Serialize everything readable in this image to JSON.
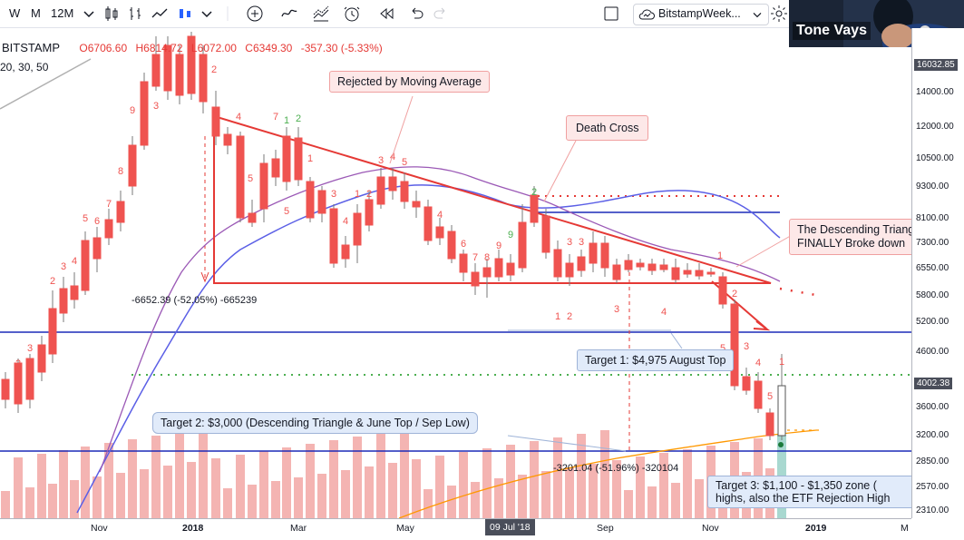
{
  "toolbar": {
    "intervals": [
      "W",
      "M",
      "12M"
    ],
    "symbol_name": "BitstampWeek..."
  },
  "webcam": {
    "name": "Tone Vays"
  },
  "legend": {
    "exchange": "BITSTAMP",
    "open_label": "O",
    "open": "6706.60",
    "high_label": "H",
    "high": "6814.72",
    "low_label": "L",
    "low": "6072.00",
    "close_label": "C",
    "close": "6349.30",
    "change": "-357.30 (-5.33%)",
    "ma_params": "20, 30, 50"
  },
  "annotations": {
    "rejected_ma": "Rejected by Moving Average",
    "death_cross": "Death Cross",
    "descending_triangle": "The Descending Triangle\nFINALLY Broke down",
    "target1": "Target 1: $4,975 August Top",
    "target2": "Target 2: $3,000 (Descending Triangle & June Top / Sep Low)",
    "target3": "Target 3: $1,100 - $1,350 zone (\nhighs, also the ETF Rejection High"
  },
  "measurements": {
    "m1": "-6652.39 (-52.05%) -665239",
    "m2": "-3201.04 (-51.96%) -320104"
  },
  "price_axis": {
    "labels": [
      "16032.85",
      "14000.00",
      "12000.00",
      "10500.00",
      "9300.00",
      "8100.00",
      "7300.00",
      "6550.00",
      "5800.00",
      "5200.00",
      "4600.00",
      "4002.38",
      "3600.00",
      "3200.00",
      "2850.00",
      "2570.00",
      "2310.00"
    ],
    "current_price_tag": "16032.85",
    "last_price_tag": "4002.38"
  },
  "time_axis": {
    "labels": [
      "Nov",
      "2018",
      "Mar",
      "May",
      "09 Jul '18",
      "Sep",
      "Nov",
      "2019",
      "M"
    ]
  },
  "chart_data": {
    "type": "candlestick",
    "symbol": "BITSTAMP",
    "ma_periods": [
      20,
      30,
      50
    ],
    "levels": [
      {
        "name": "Target 1",
        "value": 4975
      },
      {
        "name": "Target 2",
        "value": 3000
      },
      {
        "name": "Descending triangle base",
        "value": 6000
      },
      {
        "name": "Horizontal resistance",
        "value": 8200
      }
    ],
    "last_price": 4002.38,
    "top_visible": 16032.85
  },
  "colors": {
    "up": "#26a69a",
    "down": "#ef5350",
    "trendline": "#e53935",
    "ma_blue": "#5b5fe6",
    "ma_purple": "#9b59b6",
    "hline_blue": "#1c2bb8",
    "dots_green": "#4caf50",
    "dots_red": "#e53935"
  }
}
